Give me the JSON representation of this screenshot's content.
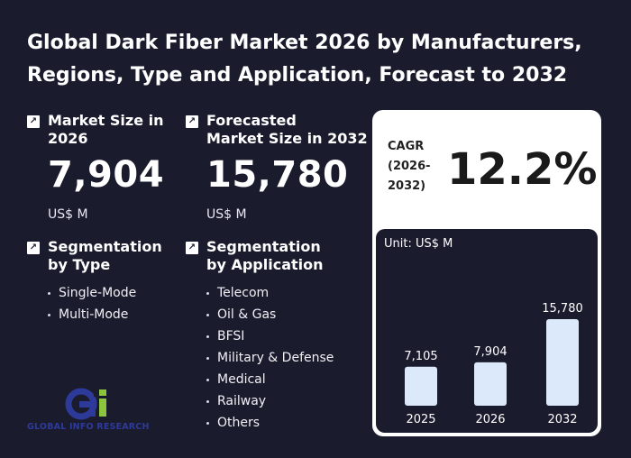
{
  "title": {
    "line1": "Global Dark Fiber Market 2026 by Manufacturers,",
    "line2": "Regions, Type and Application, Forecast to 2032"
  },
  "market_size": {
    "label_line1": "Market Size in",
    "label_line2": "2026",
    "value": "7,904",
    "unit": "US$ M"
  },
  "forecast": {
    "label_line1": "Forecasted",
    "label_line2": "Market Size in 2032",
    "value": "15,780",
    "unit": "US$ M"
  },
  "seg_type": {
    "label_line1": "Segmentation",
    "label_line2": "by Type",
    "items": [
      "Single-Mode",
      "Multi-Mode"
    ]
  },
  "seg_app": {
    "label_line1": "Segmentation",
    "label_line2": "by Application",
    "items": [
      "Telecom",
      "Oil & Gas",
      "BFSI",
      "Military & Defense",
      "Medical",
      "Railway",
      "Others"
    ]
  },
  "cagr": {
    "label_line1": "CAGR",
    "label_line2": "(2026-",
    "label_line3": "2032)",
    "value": "12.2%"
  },
  "chart_unit": "Unit: US$ M",
  "chart_data": {
    "type": "bar",
    "categories": [
      "2025",
      "2026",
      "2032"
    ],
    "values": [
      7105,
      7904,
      15780
    ],
    "value_labels": [
      "7,105",
      "7,904",
      "15,780"
    ],
    "title": "",
    "xlabel": "",
    "ylabel": "",
    "ylim": [
      0,
      15780
    ]
  },
  "logo": {
    "text": "GLOBAL INFO RESEARCH"
  },
  "colors": {
    "background": "#1a1c2e",
    "bar": "#dbe9fb",
    "card": "#ffffff",
    "logo_blue": "#2d3a9a",
    "logo_green": "#8cc63f"
  }
}
